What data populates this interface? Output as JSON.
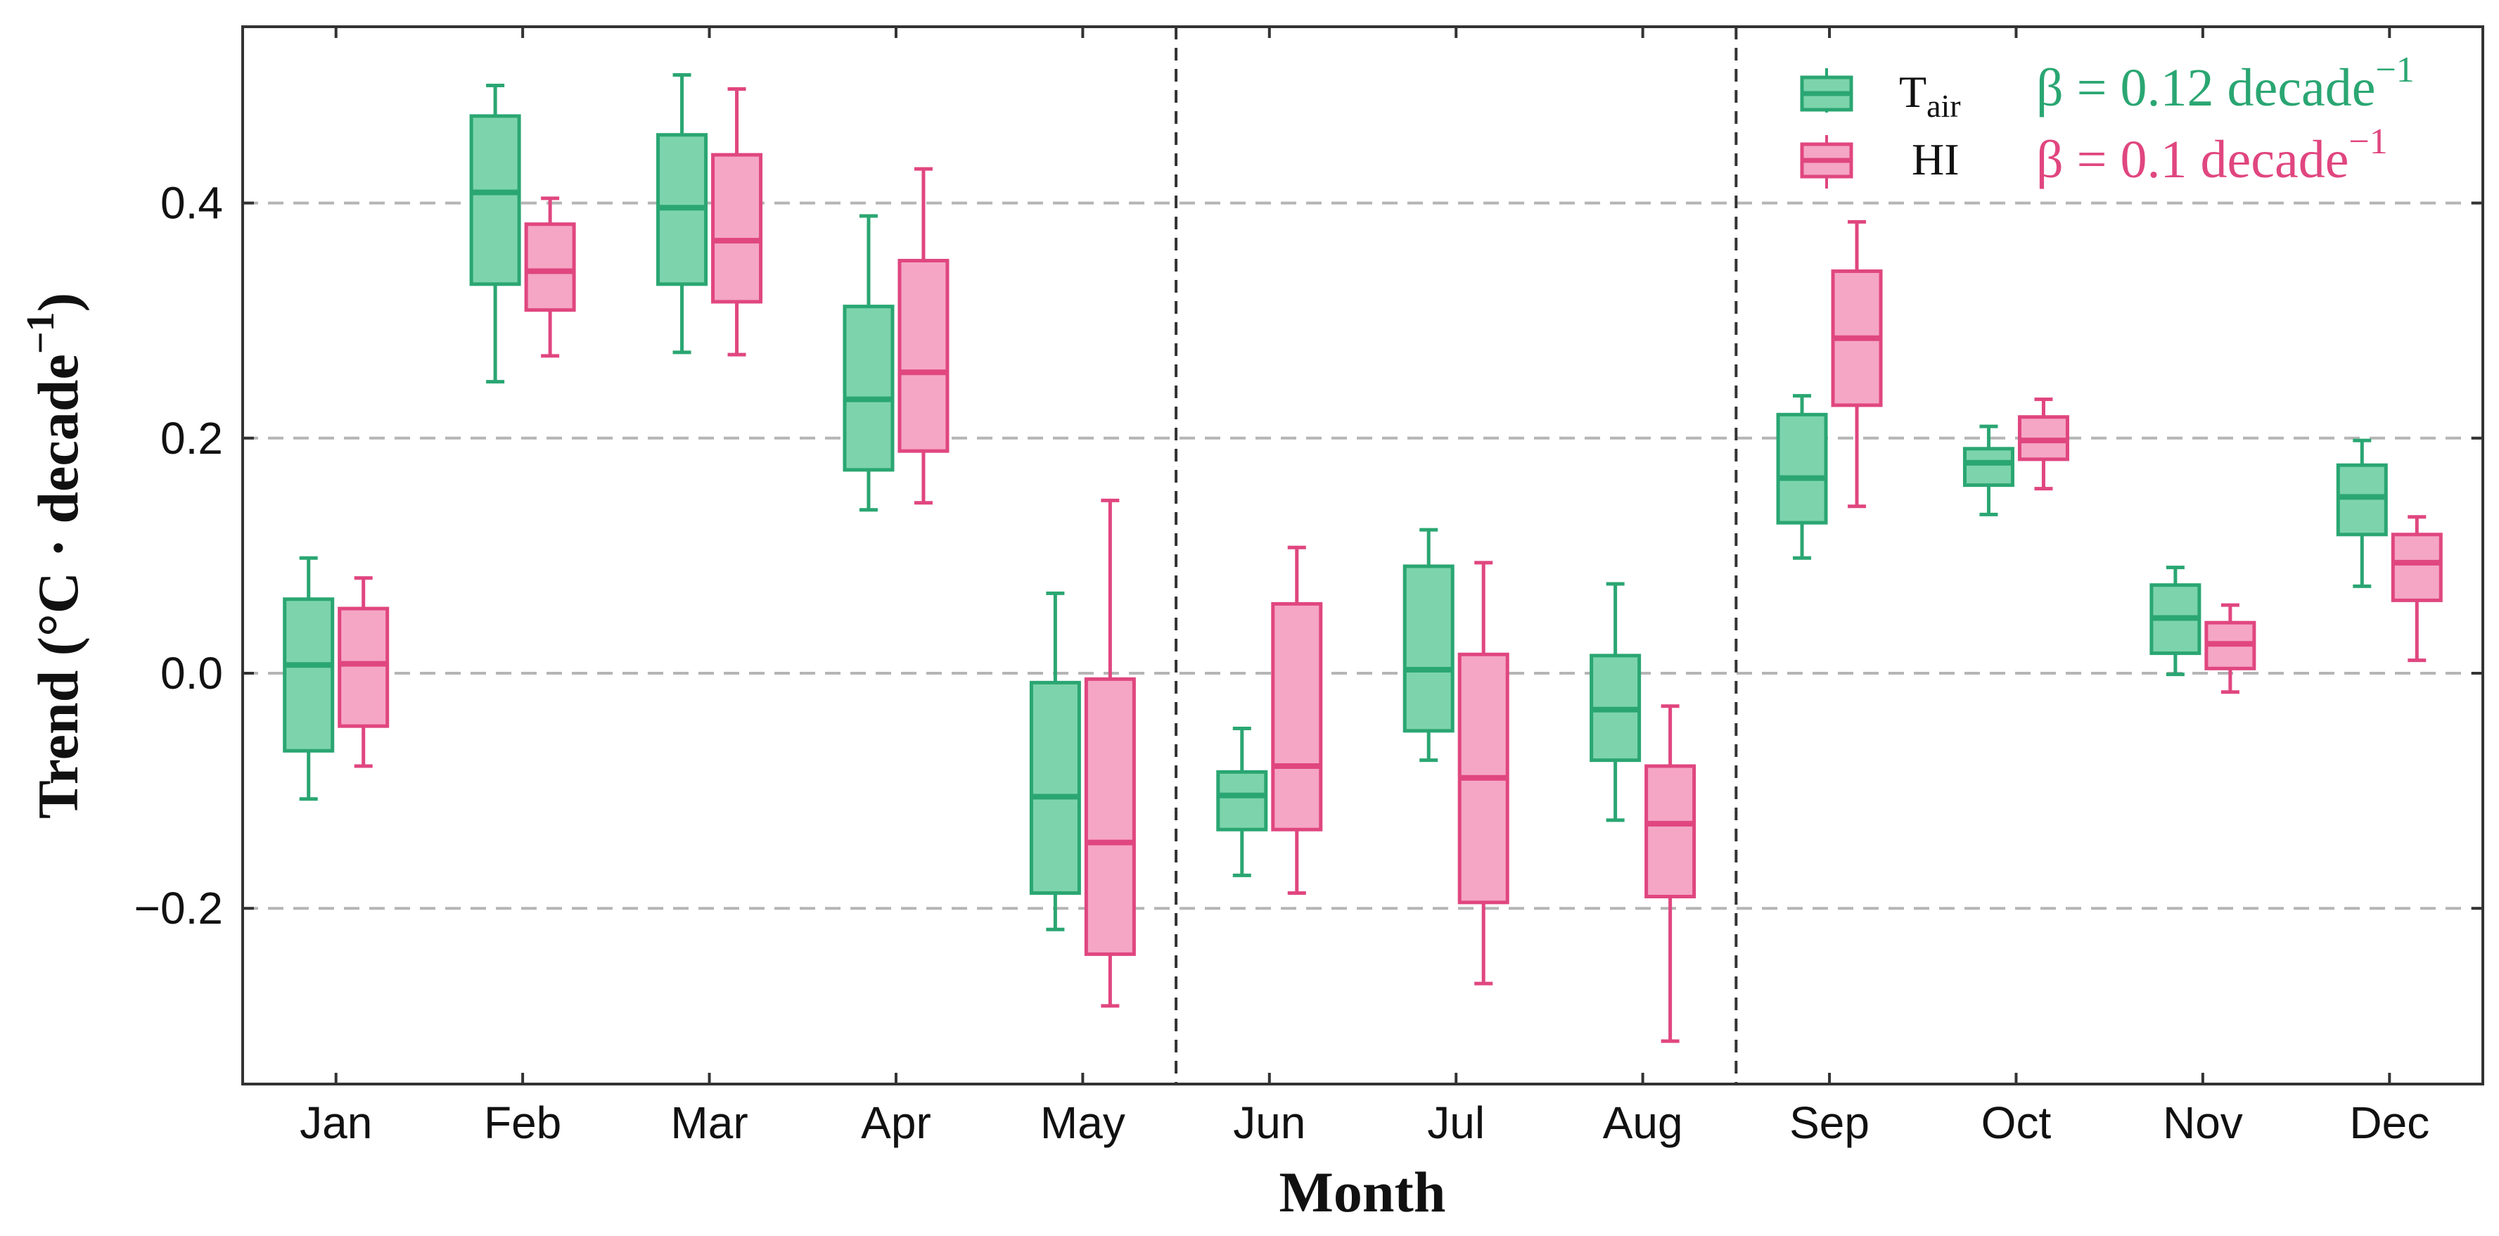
{
  "chart_data": {
    "type": "boxplot",
    "title": "",
    "xlabel": "Month",
    "ylabel": {
      "prefix": "Trend (°C · decade",
      "sup": "−1",
      "suffix": ")"
    },
    "ylim": [
      -0.35,
      0.55
    ],
    "yticks": [
      {
        "value": -0.2,
        "label": "−0.2"
      },
      {
        "value": 0.0,
        "label": "0.0"
      },
      {
        "value": 0.2,
        "label": "0.2"
      },
      {
        "value": 0.4,
        "label": "0.4"
      }
    ],
    "grid": "horizontal dashed",
    "categories": [
      "Jan",
      "Feb",
      "Mar",
      "Apr",
      "May",
      "Jun",
      "Jul",
      "Aug",
      "Sep",
      "Oct",
      "Nov",
      "Dec"
    ],
    "season_separators_after": [
      "May",
      "Aug"
    ],
    "legend_position": "top-right",
    "series": [
      {
        "name": "Tair",
        "label_main": "T",
        "label_sub": "air",
        "color": "#2aa672",
        "fill": "#7dd4ac",
        "beta": {
          "prefix": "β = 0.12 decade",
          "sup": "−1"
        },
        "boxes": [
          {
            "month": "Jan",
            "min": -0.107,
            "q1": -0.066,
            "median": 0.007,
            "q3": 0.063,
            "max": 0.098
          },
          {
            "month": "Feb",
            "min": 0.248,
            "q1": 0.331,
            "median": 0.409,
            "q3": 0.474,
            "max": 0.5
          },
          {
            "month": "Mar",
            "min": 0.273,
            "q1": 0.331,
            "median": 0.396,
            "q3": 0.458,
            "max": 0.509
          },
          {
            "month": "Apr",
            "min": 0.139,
            "q1": 0.173,
            "median": 0.233,
            "q3": 0.312,
            "max": 0.389
          },
          {
            "month": "May",
            "min": -0.218,
            "q1": -0.187,
            "median": -0.105,
            "q3": -0.008,
            "max": 0.068
          },
          {
            "month": "Jun",
            "min": -0.172,
            "q1": -0.133,
            "median": -0.104,
            "q3": -0.084,
            "max": -0.047
          },
          {
            "month": "Jul",
            "min": -0.074,
            "q1": -0.049,
            "median": 0.003,
            "q3": 0.091,
            "max": 0.122
          },
          {
            "month": "Aug",
            "min": -0.125,
            "q1": -0.074,
            "median": -0.031,
            "q3": 0.015,
            "max": 0.076
          },
          {
            "month": "Sep",
            "min": 0.098,
            "q1": 0.128,
            "median": 0.166,
            "q3": 0.22,
            "max": 0.236
          },
          {
            "month": "Oct",
            "min": 0.135,
            "q1": 0.16,
            "median": 0.179,
            "q3": 0.191,
            "max": 0.21
          },
          {
            "month": "Nov",
            "min": -0.001,
            "q1": 0.017,
            "median": 0.047,
            "q3": 0.075,
            "max": 0.09
          },
          {
            "month": "Dec",
            "min": 0.074,
            "q1": 0.118,
            "median": 0.15,
            "q3": 0.177,
            "max": 0.198
          }
        ]
      },
      {
        "name": "HI",
        "label_main": "HI",
        "label_sub": "",
        "color": "#e0467f",
        "fill": "#f5a6c5",
        "beta": {
          "prefix": "β = 0.1 decade",
          "sup": "−1"
        },
        "boxes": [
          {
            "month": "Jan",
            "min": -0.079,
            "q1": -0.045,
            "median": 0.008,
            "q3": 0.055,
            "max": 0.081
          },
          {
            "month": "Feb",
            "min": 0.27,
            "q1": 0.309,
            "median": 0.342,
            "q3": 0.382,
            "max": 0.404
          },
          {
            "month": "Mar",
            "min": 0.271,
            "q1": 0.316,
            "median": 0.368,
            "q3": 0.441,
            "max": 0.497
          },
          {
            "month": "Apr",
            "min": 0.145,
            "q1": 0.189,
            "median": 0.256,
            "q3": 0.351,
            "max": 0.429
          },
          {
            "month": "May",
            "min": -0.283,
            "q1": -0.239,
            "median": -0.144,
            "q3": -0.005,
            "max": 0.147
          },
          {
            "month": "Jun",
            "min": -0.187,
            "q1": -0.133,
            "median": -0.079,
            "q3": 0.059,
            "max": 0.107
          },
          {
            "month": "Jul",
            "min": -0.264,
            "q1": -0.195,
            "median": -0.089,
            "q3": 0.016,
            "max": 0.094
          },
          {
            "month": "Aug",
            "min": -0.313,
            "q1": -0.19,
            "median": -0.128,
            "q3": -0.079,
            "max": -0.028
          },
          {
            "month": "Sep",
            "min": 0.142,
            "q1": 0.228,
            "median": 0.285,
            "q3": 0.342,
            "max": 0.384
          },
          {
            "month": "Oct",
            "min": 0.157,
            "q1": 0.182,
            "median": 0.198,
            "q3": 0.218,
            "max": 0.233
          },
          {
            "month": "Nov",
            "min": -0.016,
            "q1": 0.004,
            "median": 0.025,
            "q3": 0.043,
            "max": 0.058
          },
          {
            "month": "Dec",
            "min": 0.011,
            "q1": 0.062,
            "median": 0.094,
            "q3": 0.118,
            "max": 0.133
          }
        ]
      }
    ]
  }
}
